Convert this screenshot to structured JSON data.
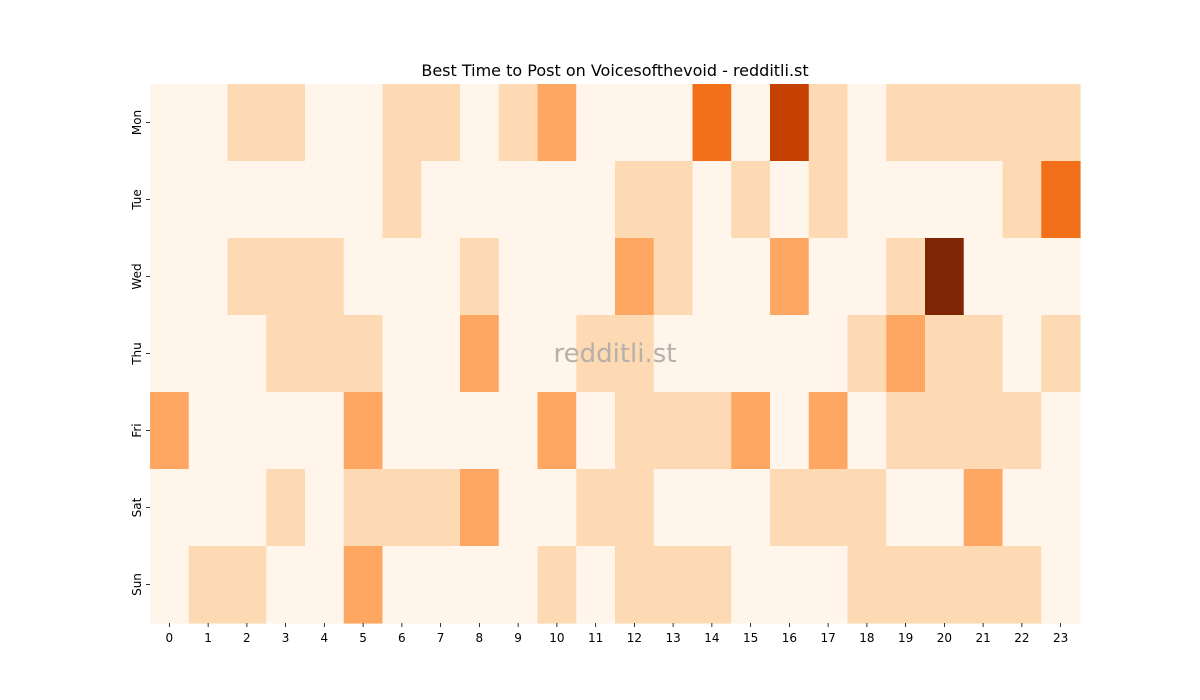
{
  "chart_data": {
    "type": "heatmap",
    "title": "Best Time to Post on Voicesofthevoid - redditli.st",
    "watermark": "redditli.st",
    "xlabel": "",
    "ylabel": "",
    "x": [
      "0",
      "1",
      "2",
      "3",
      "4",
      "5",
      "6",
      "7",
      "8",
      "9",
      "10",
      "11",
      "12",
      "13",
      "14",
      "15",
      "16",
      "17",
      "18",
      "19",
      "20",
      "21",
      "22",
      "23"
    ],
    "y": [
      "Mon",
      "Tue",
      "Wed",
      "Thu",
      "Fri",
      "Sat",
      "Sun"
    ],
    "values": [
      [
        0,
        0,
        1,
        1,
        0,
        0,
        1,
        1,
        0,
        1,
        2,
        0,
        0,
        0,
        3,
        0,
        4,
        1,
        0,
        1,
        1,
        1,
        1,
        1
      ],
      [
        0,
        0,
        0,
        0,
        0,
        0,
        1,
        0,
        0,
        0,
        0,
        0,
        1,
        1,
        0,
        1,
        0,
        1,
        0,
        0,
        0,
        0,
        1,
        3
      ],
      [
        0,
        0,
        1,
        1,
        1,
        0,
        0,
        0,
        1,
        0,
        0,
        0,
        2,
        1,
        0,
        0,
        2,
        0,
        0,
        1,
        5,
        0,
        0,
        0
      ],
      [
        0,
        0,
        0,
        1,
        1,
        1,
        0,
        0,
        2,
        0,
        0,
        1,
        1,
        0,
        0,
        0,
        0,
        0,
        1,
        2,
        1,
        1,
        0,
        1
      ],
      [
        2,
        0,
        0,
        0,
        0,
        2,
        0,
        0,
        0,
        0,
        2,
        0,
        1,
        1,
        1,
        2,
        0,
        2,
        0,
        1,
        1,
        1,
        1,
        0
      ],
      [
        0,
        0,
        0,
        1,
        0,
        1,
        1,
        1,
        2,
        0,
        0,
        1,
        1,
        0,
        0,
        0,
        1,
        1,
        1,
        0,
        0,
        2,
        0,
        0
      ],
      [
        0,
        1,
        1,
        0,
        0,
        2,
        0,
        0,
        0,
        0,
        1,
        0,
        1,
        1,
        1,
        0,
        0,
        0,
        1,
        1,
        1,
        1,
        1,
        0
      ]
    ],
    "colormap": "Oranges",
    "color_scale": [
      "#fff5eb",
      "#fdd9b4",
      "#fda762",
      "#f3701b",
      "#c54102",
      "#7f2704"
    ],
    "grid": false,
    "legend": "none"
  }
}
